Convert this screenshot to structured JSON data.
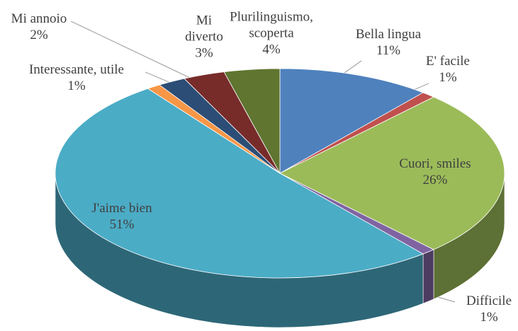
{
  "chart_data": {
    "type": "pie3d",
    "categories": [
      "Bella lingua",
      "E' facile",
      "Cuori, smiles",
      "Difficile",
      "J'aime bien",
      "Interessante, utile",
      "Mi annoio",
      "Mi diverto",
      "Plurilinguismo, scoperta"
    ],
    "values": [
      11,
      1,
      26,
      1,
      51,
      1,
      2,
      3,
      4
    ],
    "value_labels": [
      "11%",
      "1%",
      "26%",
      "1%",
      "51%",
      "1%",
      "2%",
      "3%",
      "4%"
    ],
    "colors": [
      "#4f81bd",
      "#c0504d",
      "#9bbb59",
      "#8064a2",
      "#4bacc6",
      "#f79646",
      "#2c4d75",
      "#772c2a",
      "#5f7530"
    ]
  }
}
